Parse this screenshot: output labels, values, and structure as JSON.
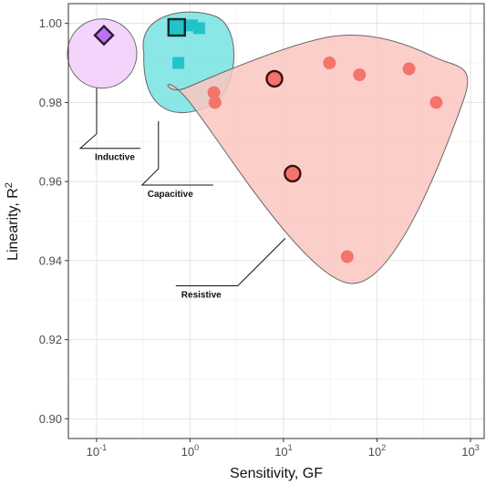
{
  "chart_data": {
    "type": "scatter",
    "xlabel": "Sensitivity, GF",
    "ylabel": "Linearity, R",
    "ylabel_sup": "2",
    "xscale": "log",
    "xlim": [
      0.05,
      1400
    ],
    "ylim": [
      0.895,
      1.005
    ],
    "grid": true,
    "x_ticks": [
      {
        "value": 0.1,
        "base": "10",
        "exp": "-1"
      },
      {
        "value": 1,
        "base": "10",
        "exp": "0"
      },
      {
        "value": 10,
        "base": "10",
        "exp": "1"
      },
      {
        "value": 100,
        "base": "10",
        "exp": "2"
      },
      {
        "value": 1000,
        "base": "10",
        "exp": "3"
      }
    ],
    "y_ticks": [
      0.9,
      0.92,
      0.94,
      0.96,
      0.98,
      1.0
    ],
    "y_tick_labels": [
      "0.90",
      "0.92",
      "0.94",
      "0.96",
      "0.98",
      "1.00"
    ],
    "groups": [
      {
        "name": "Inductive",
        "marker": "diamond",
        "color": "#c06ff0",
        "hull_color": "#f2cffb",
        "points": [
          {
            "x": 0.12,
            "y": 0.997,
            "highlight": true
          }
        ]
      },
      {
        "name": "Capacitive",
        "marker": "square",
        "color": "#22c4c9",
        "hull_color": "#7ee3e3",
        "points": [
          {
            "x": 0.72,
            "y": 0.999,
            "highlight": true
          },
          {
            "x": 1.05,
            "y": 0.9995,
            "highlight": false
          },
          {
            "x": 1.25,
            "y": 0.9988,
            "highlight": false
          },
          {
            "x": 0.75,
            "y": 0.99,
            "highlight": false
          }
        ]
      },
      {
        "name": "Resistive",
        "marker": "circle",
        "color": "#f4736b",
        "hull_color": "#fcc6c0",
        "points": [
          {
            "x": 1.8,
            "y": 0.9825,
            "highlight": false
          },
          {
            "x": 1.85,
            "y": 0.98,
            "highlight": false
          },
          {
            "x": 8.0,
            "y": 0.986,
            "highlight": true
          },
          {
            "x": 12.5,
            "y": 0.962,
            "highlight": true
          },
          {
            "x": 31,
            "y": 0.99,
            "highlight": false
          },
          {
            "x": 65,
            "y": 0.987,
            "highlight": false
          },
          {
            "x": 220,
            "y": 0.9885,
            "highlight": false
          },
          {
            "x": 430,
            "y": 0.98,
            "highlight": false
          },
          {
            "x": 48,
            "y": 0.941,
            "highlight": false
          }
        ]
      }
    ]
  }
}
